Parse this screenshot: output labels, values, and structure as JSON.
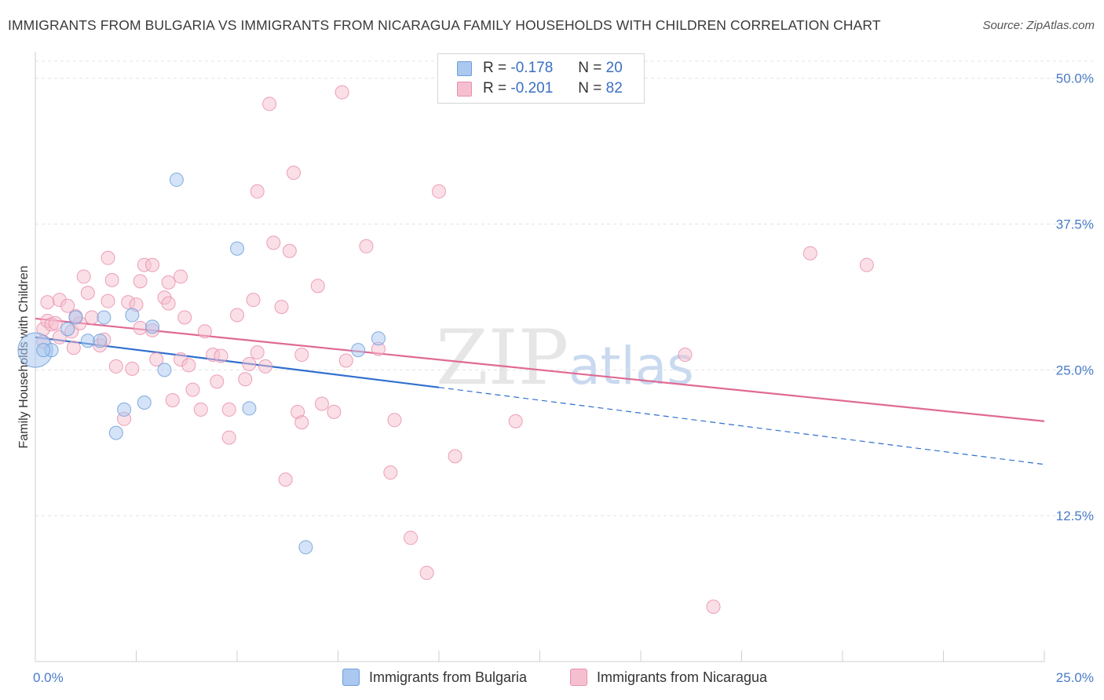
{
  "title": "IMMIGRANTS FROM BULGARIA VS IMMIGRANTS FROM NICARAGUA FAMILY HOUSEHOLDS WITH CHILDREN CORRELATION CHART",
  "source": "Source: ZipAtlas.com",
  "watermark": {
    "main": "ZIP",
    "sub": "atlas"
  },
  "legend": {
    "rows": [
      {
        "r_label": "R =",
        "r_value": "-0.178",
        "n_label": "N =",
        "n_value": "20"
      },
      {
        "r_label": "R =",
        "r_value": "-0.201",
        "n_label": "N =",
        "n_value": "82"
      }
    ]
  },
  "colors": {
    "bulgaria_fill": "#aac8f0",
    "bulgaria_stroke": "#6f9fd8",
    "bulgaria_line": "#2f6fcf",
    "nicaragua_fill": "#f6bfd0",
    "nicaragua_stroke": "#ea8fab",
    "nicaragua_line": "#e06a93",
    "axis_text": "#4a7cc7"
  },
  "chart_data": {
    "type": "scatter",
    "title": "IMMIGRANTS FROM BULGARIA VS IMMIGRANTS FROM NICARAGUA FAMILY HOUSEHOLDS WITH CHILDREN CORRELATION CHART",
    "xlabel": "",
    "ylabel": "Family Households with Children",
    "xlim": [
      0,
      25
    ],
    "ylim": [
      0,
      52
    ],
    "x_tick_labels": [
      "0.0%",
      "25.0%"
    ],
    "y_ticks": [
      12.5,
      25.0,
      37.5,
      50.0
    ],
    "y_tick_labels": [
      "12.5%",
      "25.0%",
      "37.5%",
      "50.0%"
    ],
    "grid": true,
    "legend_position": "top-center",
    "series": [
      {
        "name": "Immigrants from Bulgaria",
        "r": -0.178,
        "n": 20,
        "trend": {
          "x0": 0,
          "y0": 27.8,
          "x1": 10,
          "y1": 23.5,
          "dashed_to_x": 25,
          "dashed_to_y": 16.9
        },
        "points": [
          {
            "x": 0.0,
            "y": 26.7,
            "big": true
          },
          {
            "x": 0.4,
            "y": 26.7
          },
          {
            "x": 0.8,
            "y": 28.5
          },
          {
            "x": 1.0,
            "y": 29.5
          },
          {
            "x": 1.3,
            "y": 27.5
          },
          {
            "x": 1.6,
            "y": 27.5
          },
          {
            "x": 1.7,
            "y": 29.5
          },
          {
            "x": 2.0,
            "y": 19.6
          },
          {
            "x": 2.2,
            "y": 21.6
          },
          {
            "x": 2.4,
            "y": 29.7
          },
          {
            "x": 2.7,
            "y": 22.2
          },
          {
            "x": 2.9,
            "y": 28.7
          },
          {
            "x": 3.2,
            "y": 25.0
          },
          {
            "x": 3.5,
            "y": 41.3
          },
          {
            "x": 5.0,
            "y": 35.4
          },
          {
            "x": 5.3,
            "y": 21.7
          },
          {
            "x": 6.7,
            "y": 9.8
          },
          {
            "x": 8.0,
            "y": 26.7
          },
          {
            "x": 8.5,
            "y": 27.7
          },
          {
            "x": 0.2,
            "y": 26.7
          }
        ]
      },
      {
        "name": "Immigrants from Nicaragua",
        "r": -0.201,
        "n": 82,
        "trend": {
          "x0": 0,
          "y0": 29.4,
          "x1": 25,
          "y1": 20.6
        },
        "points": [
          {
            "x": 0.2,
            "y": 28.5
          },
          {
            "x": 0.3,
            "y": 29.2
          },
          {
            "x": 0.4,
            "y": 28.9
          },
          {
            "x": 0.5,
            "y": 29.0
          },
          {
            "x": 0.3,
            "y": 30.8
          },
          {
            "x": 0.6,
            "y": 31.0
          },
          {
            "x": 0.6,
            "y": 27.8
          },
          {
            "x": 0.9,
            "y": 28.3
          },
          {
            "x": 0.8,
            "y": 30.5
          },
          {
            "x": 0.95,
            "y": 26.9
          },
          {
            "x": 1.1,
            "y": 29.0
          },
          {
            "x": 1.0,
            "y": 29.6
          },
          {
            "x": 1.2,
            "y": 33.0
          },
          {
            "x": 1.3,
            "y": 31.6
          },
          {
            "x": 1.4,
            "y": 29.5
          },
          {
            "x": 1.6,
            "y": 27.1
          },
          {
            "x": 1.7,
            "y": 27.6
          },
          {
            "x": 1.8,
            "y": 30.9
          },
          {
            "x": 1.8,
            "y": 34.6
          },
          {
            "x": 1.9,
            "y": 32.7
          },
          {
            "x": 2.0,
            "y": 25.3
          },
          {
            "x": 2.2,
            "y": 20.8
          },
          {
            "x": 2.3,
            "y": 30.8
          },
          {
            "x": 2.4,
            "y": 25.1
          },
          {
            "x": 2.5,
            "y": 30.6
          },
          {
            "x": 2.6,
            "y": 32.6
          },
          {
            "x": 2.6,
            "y": 28.6
          },
          {
            "x": 2.7,
            "y": 34.0
          },
          {
            "x": 2.9,
            "y": 34.0
          },
          {
            "x": 2.9,
            "y": 28.4
          },
          {
            "x": 3.0,
            "y": 25.9
          },
          {
            "x": 3.2,
            "y": 31.2
          },
          {
            "x": 3.3,
            "y": 32.5
          },
          {
            "x": 3.3,
            "y": 30.7
          },
          {
            "x": 3.4,
            "y": 22.4
          },
          {
            "x": 3.6,
            "y": 25.9
          },
          {
            "x": 3.6,
            "y": 33.0
          },
          {
            "x": 3.7,
            "y": 29.5
          },
          {
            "x": 3.8,
            "y": 25.4
          },
          {
            "x": 3.9,
            "y": 23.3
          },
          {
            "x": 4.1,
            "y": 21.6
          },
          {
            "x": 4.2,
            "y": 28.3
          },
          {
            "x": 4.4,
            "y": 26.3
          },
          {
            "x": 4.5,
            "y": 24.0
          },
          {
            "x": 4.6,
            "y": 26.2
          },
          {
            "x": 4.8,
            "y": 19.2
          },
          {
            "x": 4.8,
            "y": 21.6
          },
          {
            "x": 5.0,
            "y": 29.7
          },
          {
            "x": 5.2,
            "y": 24.2
          },
          {
            "x": 5.3,
            "y": 25.5
          },
          {
            "x": 5.4,
            "y": 31.0
          },
          {
            "x": 5.5,
            "y": 26.5
          },
          {
            "x": 5.5,
            "y": 40.3
          },
          {
            "x": 5.7,
            "y": 25.3
          },
          {
            "x": 5.8,
            "y": 47.8
          },
          {
            "x": 5.9,
            "y": 35.9
          },
          {
            "x": 6.1,
            "y": 30.4
          },
          {
            "x": 6.2,
            "y": 15.6
          },
          {
            "x": 6.3,
            "y": 35.2
          },
          {
            "x": 6.4,
            "y": 41.9
          },
          {
            "x": 6.5,
            "y": 21.4
          },
          {
            "x": 6.6,
            "y": 26.3
          },
          {
            "x": 6.6,
            "y": 20.5
          },
          {
            "x": 7.0,
            "y": 32.2
          },
          {
            "x": 7.1,
            "y": 22.1
          },
          {
            "x": 7.4,
            "y": 21.4
          },
          {
            "x": 7.6,
            "y": 48.8
          },
          {
            "x": 7.7,
            "y": 25.8
          },
          {
            "x": 8.2,
            "y": 35.6
          },
          {
            "x": 8.5,
            "y": 26.8
          },
          {
            "x": 8.8,
            "y": 16.2
          },
          {
            "x": 8.9,
            "y": 20.7
          },
          {
            "x": 9.3,
            "y": 10.6
          },
          {
            "x": 9.7,
            "y": 7.6
          },
          {
            "x": 10.0,
            "y": 40.3
          },
          {
            "x": 10.4,
            "y": 17.6
          },
          {
            "x": 11.9,
            "y": 20.6
          },
          {
            "x": 16.1,
            "y": 26.3
          },
          {
            "x": 16.8,
            "y": 4.7
          },
          {
            "x": 19.2,
            "y": 35.0
          },
          {
            "x": 20.6,
            "y": 34.0
          },
          {
            "x": 0.2,
            "y": 27.4
          }
        ]
      }
    ]
  }
}
